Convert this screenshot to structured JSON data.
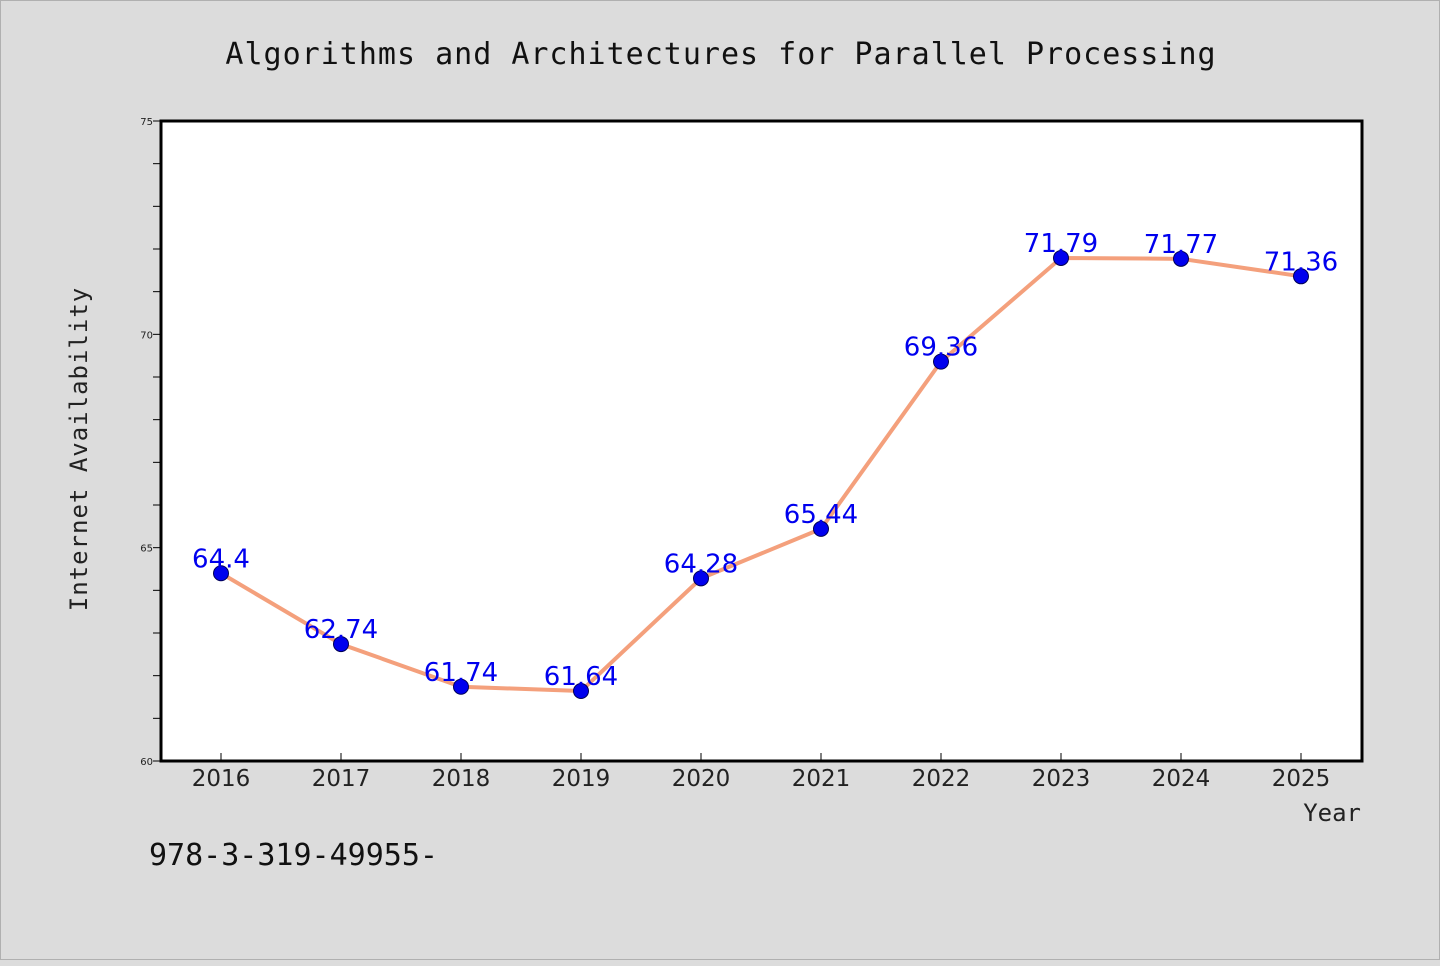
{
  "chart_data": {
    "type": "line",
    "title": "Algorithms and Architectures for Parallel Processing",
    "xlabel": "Year",
    "ylabel": "Internet Availability",
    "x": [
      "2016",
      "2017",
      "2018",
      "2019",
      "2020",
      "2021",
      "2022",
      "2023",
      "2024",
      "2025"
    ],
    "values": [
      64.4,
      62.74,
      61.74,
      61.64,
      64.28,
      65.44,
      69.36,
      71.79,
      71.77,
      71.36
    ],
    "data_labels": [
      "64.4",
      "62.74",
      "61.74",
      "61.64",
      "64.28",
      "65.44",
      "69.36",
      "71.79",
      "71.77",
      "71.36"
    ],
    "ylim": [
      60,
      75
    ],
    "yticks": [
      "60",
      "65",
      "70",
      "75"
    ],
    "grid": false,
    "line_color": "#f4a07c",
    "marker_color": "#0000ee",
    "label_color": "#0000ee"
  },
  "footer_text": "978-3-319-49955-"
}
